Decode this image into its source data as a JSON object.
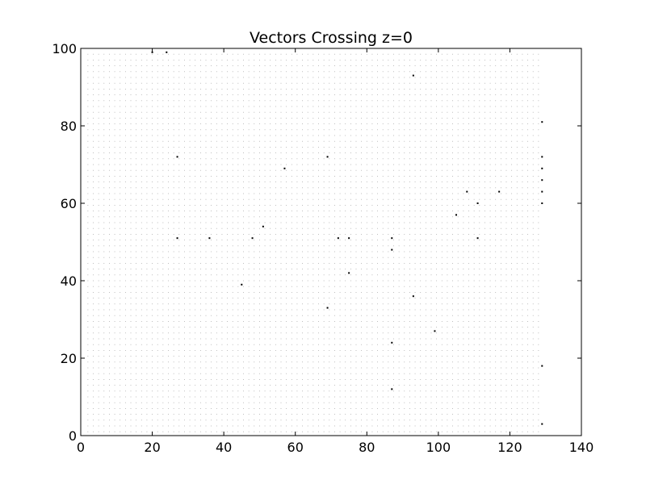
{
  "chart_data": {
    "type": "scatter",
    "title": "Vectors Crossing z=0",
    "xlabel": "",
    "ylabel": "",
    "xlim": [
      0,
      140
    ],
    "ylim": [
      0,
      100
    ],
    "xticks": [
      "0",
      "20",
      "40",
      "60",
      "80",
      "100",
      "120",
      "140"
    ],
    "yticks": [
      "0",
      "20",
      "40",
      "60",
      "80",
      "100"
    ],
    "grid": false,
    "point_color": "#000000",
    "background_points": {
      "x_start": 2,
      "x_end": 129,
      "x_step": 1.5,
      "y_start": 1,
      "y_end": 99.5,
      "y_step": 1.5
    },
    "points": [
      {
        "x": 129,
        "y": 81
      },
      {
        "x": 129,
        "y": 72
      },
      {
        "x": 129,
        "y": 69
      },
      {
        "x": 129,
        "y": 60
      },
      {
        "x": 129,
        "y": 63
      },
      {
        "x": 129,
        "y": 66
      },
      {
        "x": 129,
        "y": 18
      },
      {
        "x": 129,
        "y": 3
      },
      {
        "x": 117,
        "y": 63
      },
      {
        "x": 111,
        "y": 51
      },
      {
        "x": 111,
        "y": 60
      },
      {
        "x": 105,
        "y": 57
      },
      {
        "x": 108,
        "y": 63
      },
      {
        "x": 99,
        "y": 27
      },
      {
        "x": 93,
        "y": 93
      },
      {
        "x": 93,
        "y": 36
      },
      {
        "x": 87,
        "y": 24
      },
      {
        "x": 87,
        "y": 12
      },
      {
        "x": 87,
        "y": 48
      },
      {
        "x": 87,
        "y": 51
      },
      {
        "x": 75,
        "y": 42
      },
      {
        "x": 75,
        "y": 51
      },
      {
        "x": 72,
        "y": 51
      },
      {
        "x": 69,
        "y": 33
      },
      {
        "x": 69,
        "y": 72
      },
      {
        "x": 57,
        "y": 69
      },
      {
        "x": 51,
        "y": 54
      },
      {
        "x": 48,
        "y": 51
      },
      {
        "x": 45,
        "y": 39
      },
      {
        "x": 36,
        "y": 51
      },
      {
        "x": 27,
        "y": 51
      },
      {
        "x": 27,
        "y": 72
      },
      {
        "x": 24,
        "y": 99
      },
      {
        "x": 20,
        "y": 99
      }
    ]
  }
}
